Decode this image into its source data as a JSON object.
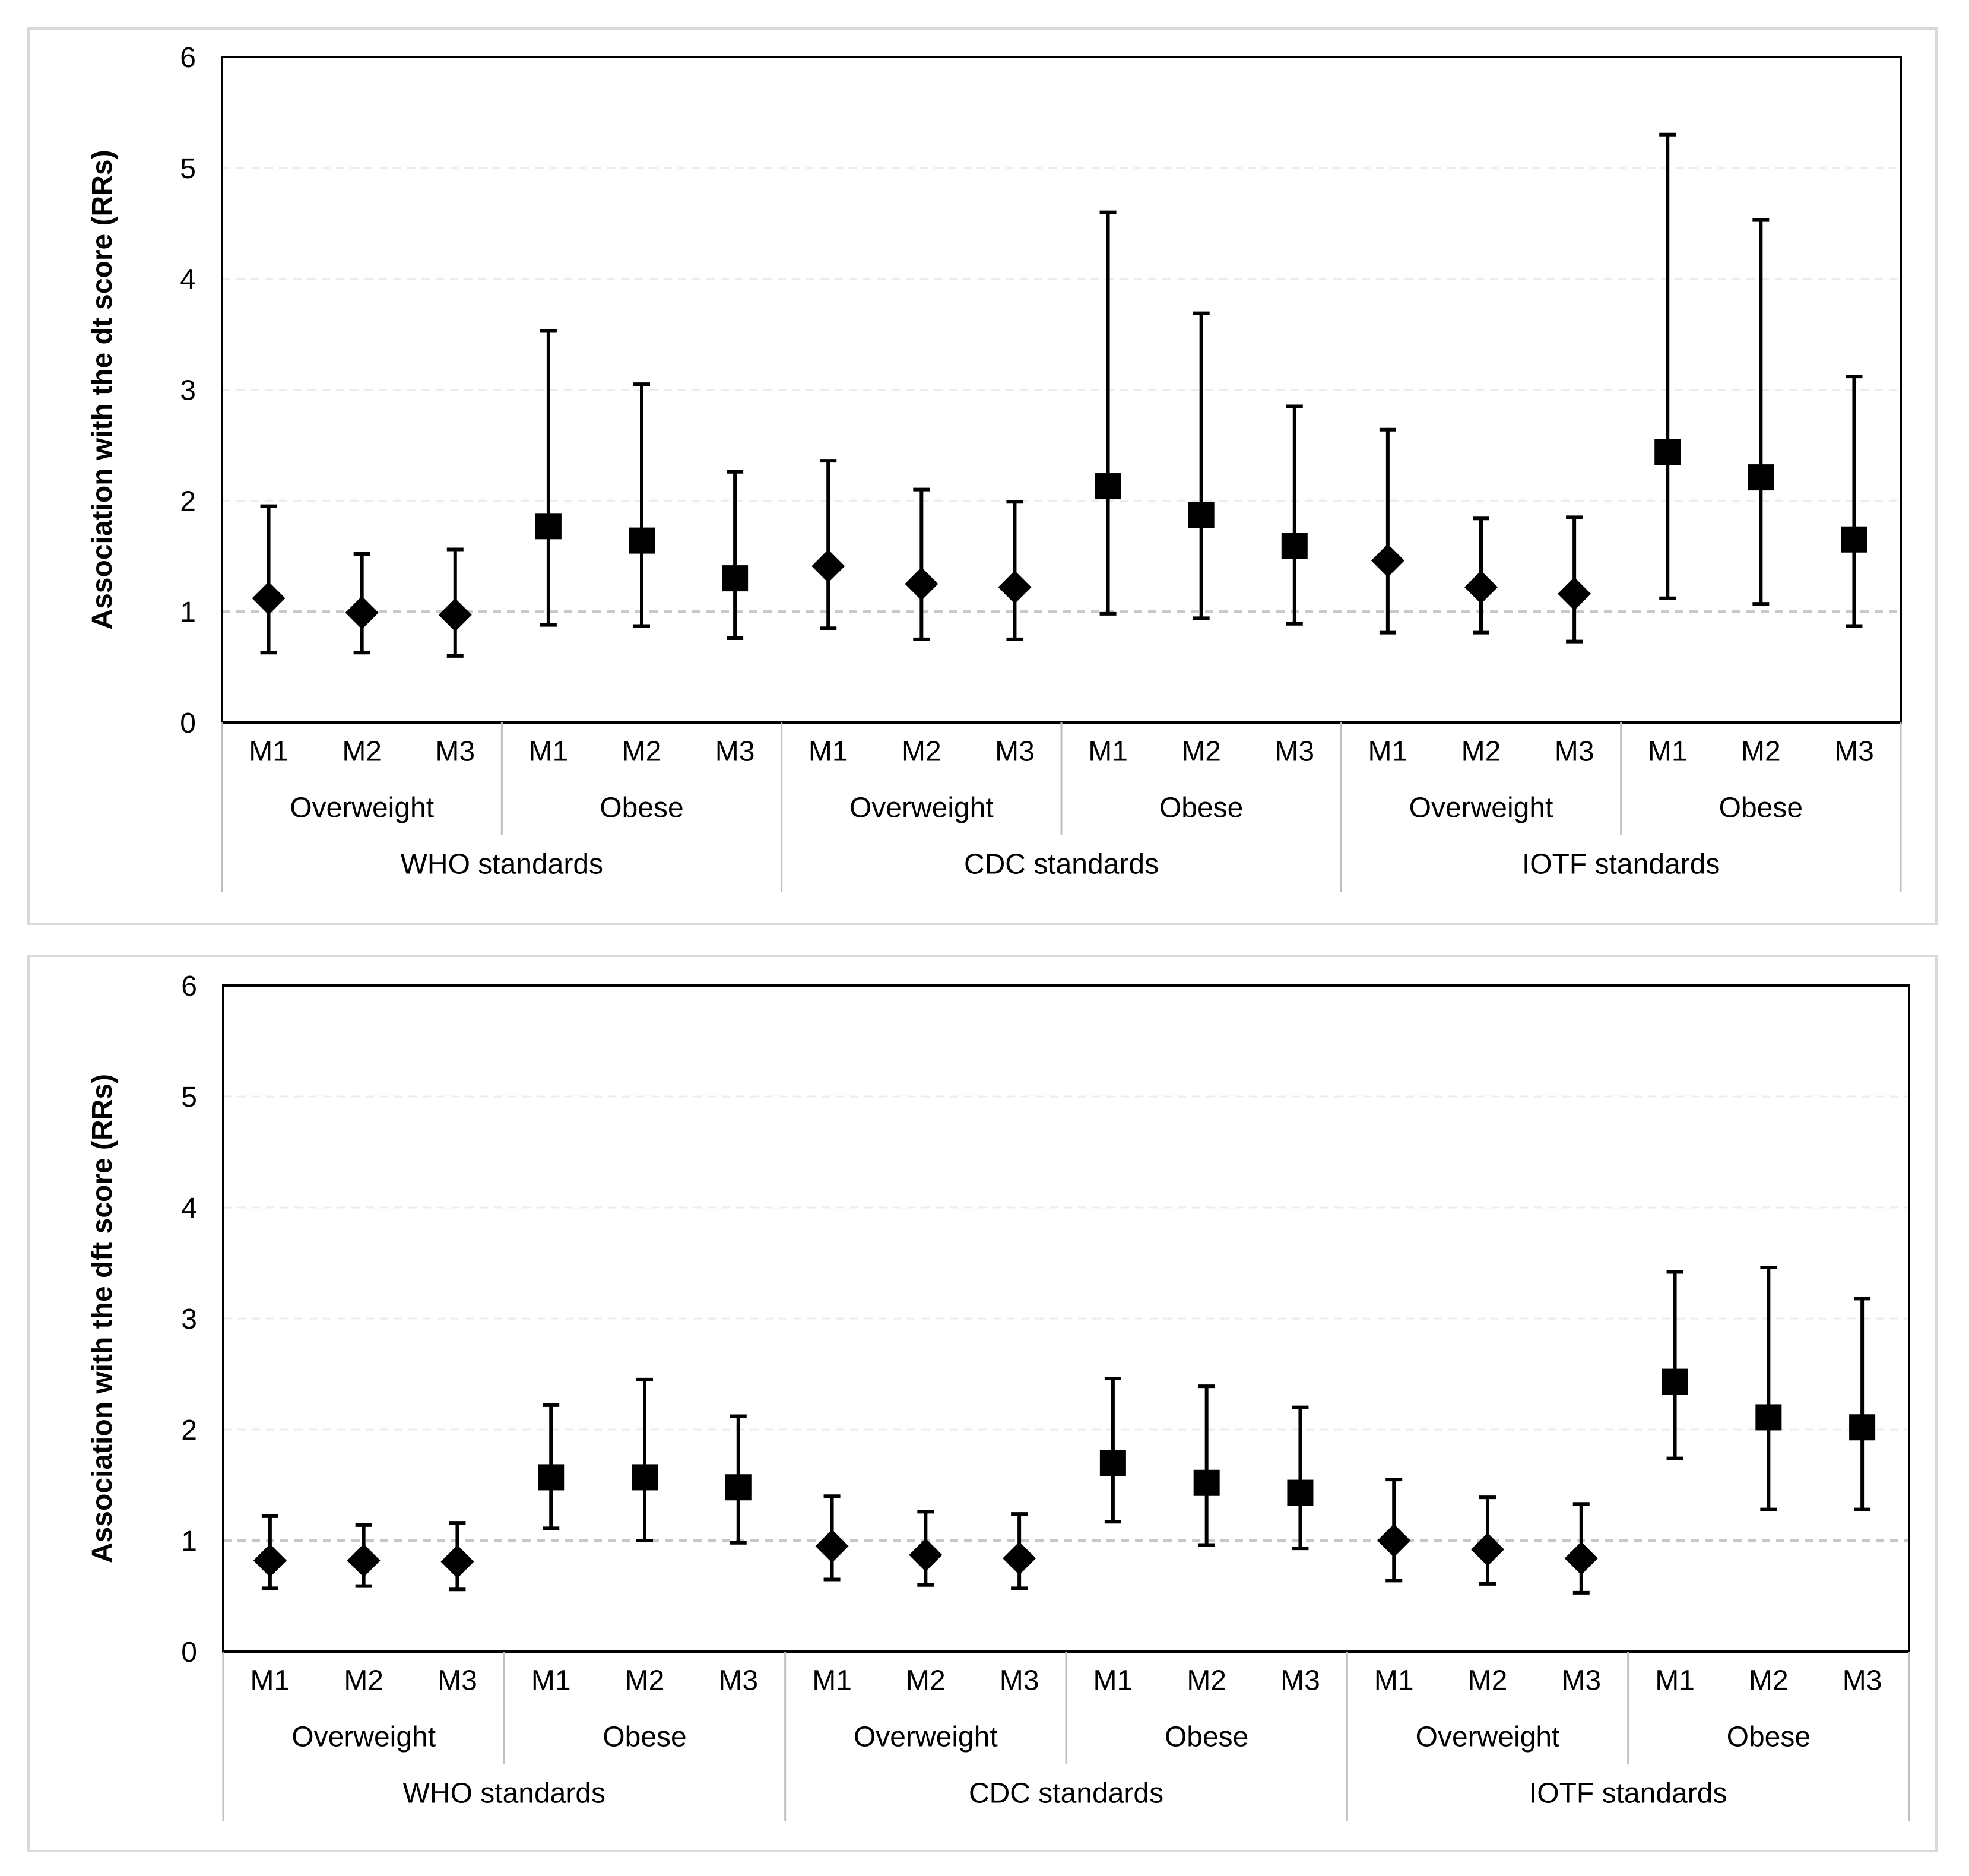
{
  "chart_data": [
    {
      "type": "errorbar",
      "ylabel": "Association with the dt score (RRs)",
      "ylim": [
        0,
        6
      ],
      "yticks": [
        0,
        1,
        2,
        3,
        4,
        5,
        6
      ],
      "reference_line": 1,
      "grid": "dashed horizontal",
      "model_labels": [
        "M1",
        "M2",
        "M3"
      ],
      "category_labels": [
        "Overweight",
        "Obese"
      ],
      "group_labels": [
        "WHO standards",
        "CDC standards",
        "IOTF standards"
      ],
      "points": [
        {
          "group": "WHO standards",
          "category": "Overweight",
          "model": "M1",
          "value": 1.12,
          "lower": 0.63,
          "upper": 1.95,
          "marker": "diamond"
        },
        {
          "group": "WHO standards",
          "category": "Overweight",
          "model": "M2",
          "value": 0.99,
          "lower": 0.63,
          "upper": 1.52,
          "marker": "diamond"
        },
        {
          "group": "WHO standards",
          "category": "Overweight",
          "model": "M3",
          "value": 0.97,
          "lower": 0.6,
          "upper": 1.56,
          "marker": "diamond"
        },
        {
          "group": "WHO standards",
          "category": "Obese",
          "model": "M1",
          "value": 1.77,
          "lower": 0.88,
          "upper": 3.53,
          "marker": "square"
        },
        {
          "group": "WHO standards",
          "category": "Obese",
          "model": "M2",
          "value": 1.64,
          "lower": 0.87,
          "upper": 3.05,
          "marker": "square"
        },
        {
          "group": "WHO standards",
          "category": "Obese",
          "model": "M3",
          "value": 1.3,
          "lower": 0.76,
          "upper": 2.26,
          "marker": "square"
        },
        {
          "group": "CDC standards",
          "category": "Overweight",
          "model": "M1",
          "value": 1.41,
          "lower": 0.85,
          "upper": 2.36,
          "marker": "diamond"
        },
        {
          "group": "CDC standards",
          "category": "Overweight",
          "model": "M2",
          "value": 1.25,
          "lower": 0.75,
          "upper": 2.1,
          "marker": "diamond"
        },
        {
          "group": "CDC standards",
          "category": "Overweight",
          "model": "M3",
          "value": 1.22,
          "lower": 0.75,
          "upper": 1.99,
          "marker": "diamond"
        },
        {
          "group": "CDC standards",
          "category": "Obese",
          "model": "M1",
          "value": 2.13,
          "lower": 0.98,
          "upper": 4.6,
          "marker": "square"
        },
        {
          "group": "CDC standards",
          "category": "Obese",
          "model": "M2",
          "value": 1.87,
          "lower": 0.94,
          "upper": 3.69,
          "marker": "square"
        },
        {
          "group": "CDC standards",
          "category": "Obese",
          "model": "M3",
          "value": 1.59,
          "lower": 0.89,
          "upper": 2.85,
          "marker": "square"
        },
        {
          "group": "IOTF standards",
          "category": "Overweight",
          "model": "M1",
          "value": 1.46,
          "lower": 0.81,
          "upper": 2.64,
          "marker": "diamond"
        },
        {
          "group": "IOTF standards",
          "category": "Overweight",
          "model": "M2",
          "value": 1.22,
          "lower": 0.81,
          "upper": 1.84,
          "marker": "diamond"
        },
        {
          "group": "IOTF standards",
          "category": "Overweight",
          "model": "M3",
          "value": 1.16,
          "lower": 0.73,
          "upper": 1.85,
          "marker": "diamond"
        },
        {
          "group": "IOTF standards",
          "category": "Obese",
          "model": "M1",
          "value": 2.44,
          "lower": 1.12,
          "upper": 5.3,
          "marker": "square"
        },
        {
          "group": "IOTF standards",
          "category": "Obese",
          "model": "M2",
          "value": 2.21,
          "lower": 1.07,
          "upper": 4.53,
          "marker": "square"
        },
        {
          "group": "IOTF standards",
          "category": "Obese",
          "model": "M3",
          "value": 1.65,
          "lower": 0.87,
          "upper": 3.12,
          "marker": "square"
        }
      ]
    },
    {
      "type": "errorbar",
      "ylabel": "Association with the dft score (RRs)",
      "ylim": [
        0,
        6
      ],
      "yticks": [
        0,
        1,
        2,
        3,
        4,
        5,
        6
      ],
      "reference_line": 1,
      "grid": "dashed horizontal",
      "model_labels": [
        "M1",
        "M2",
        "M3"
      ],
      "category_labels": [
        "Overweight",
        "Obese"
      ],
      "group_labels": [
        "WHO standards",
        "CDC standards",
        "IOTF standards"
      ],
      "points": [
        {
          "group": "WHO standards",
          "category": "Overweight",
          "model": "M1",
          "value": 0.82,
          "lower": 0.57,
          "upper": 1.22,
          "marker": "diamond"
        },
        {
          "group": "WHO standards",
          "category": "Overweight",
          "model": "M2",
          "value": 0.82,
          "lower": 0.59,
          "upper": 1.14,
          "marker": "diamond"
        },
        {
          "group": "WHO standards",
          "category": "Overweight",
          "model": "M3",
          "value": 0.81,
          "lower": 0.56,
          "upper": 1.16,
          "marker": "diamond"
        },
        {
          "group": "WHO standards",
          "category": "Obese",
          "model": "M1",
          "value": 1.57,
          "lower": 1.11,
          "upper": 2.22,
          "marker": "square"
        },
        {
          "group": "WHO standards",
          "category": "Obese",
          "model": "M2",
          "value": 1.57,
          "lower": 1.0,
          "upper": 2.45,
          "marker": "square"
        },
        {
          "group": "WHO standards",
          "category": "Obese",
          "model": "M3",
          "value": 1.48,
          "lower": 0.98,
          "upper": 2.12,
          "marker": "square"
        },
        {
          "group": "CDC standards",
          "category": "Overweight",
          "model": "M1",
          "value": 0.95,
          "lower": 0.65,
          "upper": 1.4,
          "marker": "diamond"
        },
        {
          "group": "CDC standards",
          "category": "Overweight",
          "model": "M2",
          "value": 0.87,
          "lower": 0.6,
          "upper": 1.26,
          "marker": "diamond"
        },
        {
          "group": "CDC standards",
          "category": "Overweight",
          "model": "M3",
          "value": 0.84,
          "lower": 0.57,
          "upper": 1.24,
          "marker": "diamond"
        },
        {
          "group": "CDC standards",
          "category": "Obese",
          "model": "M1",
          "value": 1.7,
          "lower": 1.17,
          "upper": 2.46,
          "marker": "square"
        },
        {
          "group": "CDC standards",
          "category": "Obese",
          "model": "M2",
          "value": 1.52,
          "lower": 0.96,
          "upper": 2.39,
          "marker": "square"
        },
        {
          "group": "CDC standards",
          "category": "Obese",
          "model": "M3",
          "value": 1.43,
          "lower": 0.93,
          "upper": 2.2,
          "marker": "square"
        },
        {
          "group": "IOTF standards",
          "category": "Overweight",
          "model": "M1",
          "value": 1.0,
          "lower": 0.64,
          "upper": 1.55,
          "marker": "diamond"
        },
        {
          "group": "IOTF standards",
          "category": "Overweight",
          "model": "M2",
          "value": 0.92,
          "lower": 0.61,
          "upper": 1.39,
          "marker": "diamond"
        },
        {
          "group": "IOTF standards",
          "category": "Overweight",
          "model": "M3",
          "value": 0.84,
          "lower": 0.53,
          "upper": 1.33,
          "marker": "diamond"
        },
        {
          "group": "IOTF standards",
          "category": "Obese",
          "model": "M1",
          "value": 2.43,
          "lower": 1.74,
          "upper": 3.42,
          "marker": "square"
        },
        {
          "group": "IOTF standards",
          "category": "Obese",
          "model": "M2",
          "value": 2.11,
          "lower": 1.28,
          "upper": 3.46,
          "marker": "square"
        },
        {
          "group": "IOTF standards",
          "category": "Obese",
          "model": "M3",
          "value": 2.02,
          "lower": 1.28,
          "upper": 3.18,
          "marker": "square"
        }
      ]
    }
  ]
}
